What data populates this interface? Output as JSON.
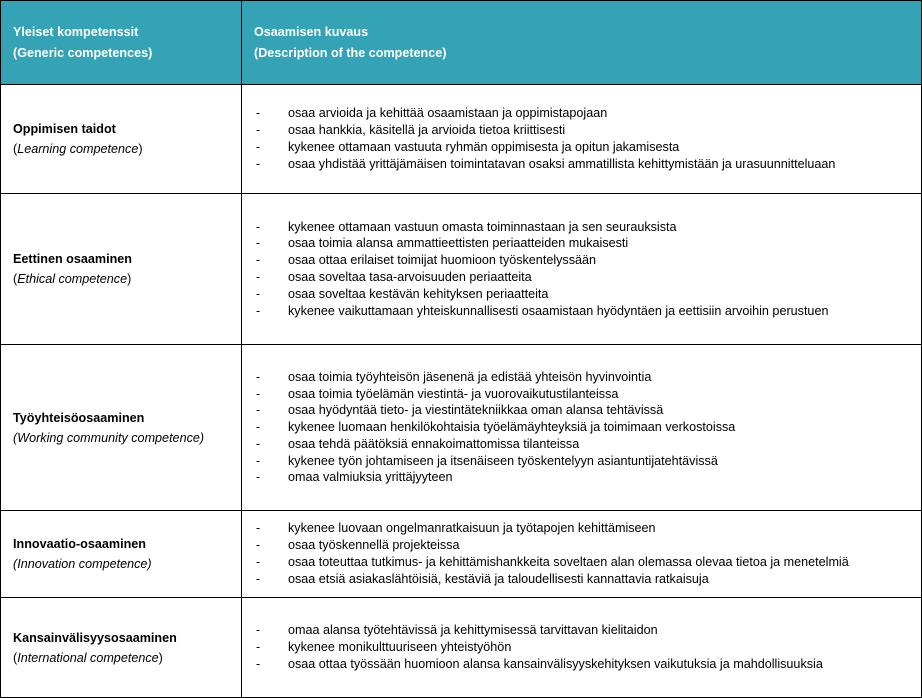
{
  "header": {
    "col1_line1": "Yleiset kompetenssit",
    "col1_line2": "(Generic competences)",
    "col2_line1": "Osaamisen kuvaus",
    "col2_line2": "(Description of the competence)"
  },
  "rows": [
    {
      "title": "Oppimisen taidot",
      "subtitle": "Learning competence",
      "subtitle_italic_only_inner": true,
      "items": [
        "osaa arvioida ja kehittää osaamistaan ja oppimistapojaan",
        "osaa hankkia, käsitellä ja arvioida tietoa kriittisesti",
        "kykenee ottamaan vastuuta ryhmän oppimisesta ja opitun jakamisesta",
        "osaa yhdistää yrittäjämäisen toimintatavan osaksi ammatillista kehittymistään ja urasuunnitteluaan"
      ]
    },
    {
      "title": "Eettinen osaaminen",
      "subtitle": "Ethical competence",
      "items": [
        "kykenee ottamaan vastuun omasta toiminnastaan ja sen seurauksista",
        "osaa toimia alansa ammattieettisten periaatteiden mukaisesti",
        "osaa ottaa erilaiset toimijat huomioon työskentelyssään",
        "osaa soveltaa tasa-arvoisuuden periaatteita",
        "osaa soveltaa kestävän kehityksen periaatteita",
        "kykenee vaikuttamaan yhteiskunnallisesti osaamistaan hyödyntäen ja eettisiin arvoihin perustuen"
      ]
    },
    {
      "title": "Työyhteisöosaaminen",
      "subtitle": "(Working community competence)",
      "items": [
        "osaa toimia työyhteisön jäsenenä ja edistää yhteisön hyvinvointia",
        "osaa toimia työelämän viestintä- ja vuorovaikutustilanteissa",
        "osaa hyödyntää tieto- ja viestintätekniikkaa oman alansa tehtävissä",
        "kykenee luomaan henkilökohtaisia työelämäyhteyksiä ja toimimaan verkostoissa",
        "osaa tehdä päätöksiä ennakoimattomissa tilanteissa",
        "kykenee työn johtamiseen ja itsenäiseen työskentelyyn asiantuntijatehtävissä",
        "omaa valmiuksia yrittäjyyteen"
      ]
    },
    {
      "title": "Innovaatio-osaaminen",
      "subtitle": "(Innovation competence)",
      "items": [
        "kykenee luovaan ongelmanratkaisuun ja työtapojen kehittämiseen",
        "osaa työskennellä projekteissa",
        "osaa toteuttaa tutkimus- ja kehittämishankkeita soveltaen alan olemassa olevaa tietoa ja menetelmiä",
        "osaa etsiä asiakaslähtöisiä, kestäviä ja taloudellisesti kannattavia ratkaisuja"
      ]
    },
    {
      "title": "Kansainvälisyysosaaminen",
      "subtitle": "International competence",
      "items": [
        "omaa alansa työtehtävissä ja kehittymisessä tarvittavan kielitaidon",
        "kykenee monikulttuuriseen yhteistyöhön",
        "osaa ottaa työssään huomioon alansa kansainvälisyyskehityksen vaikutuksia ja mahdollisuuksia"
      ]
    }
  ],
  "bullet": "-",
  "colors": {
    "header_bg": "#33a3b5",
    "header_text": "#ffffff",
    "border": "#000000"
  }
}
